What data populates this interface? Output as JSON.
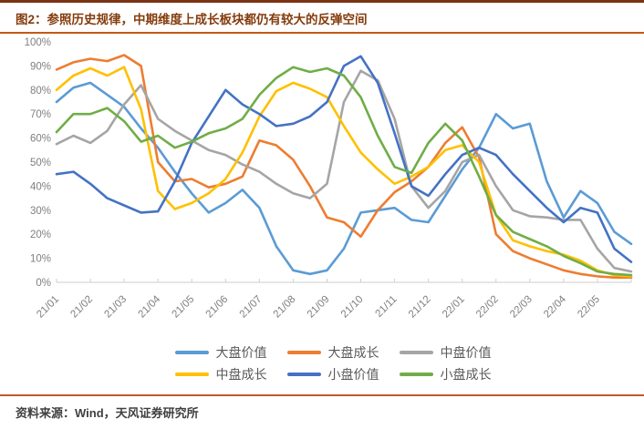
{
  "page": {
    "title": "图2：参照历史规律，中期维度上成长板块都仍有较大的反弹空间",
    "source": "资料来源：Wind，天风证券研究所"
  },
  "chart_data": {
    "type": "line",
    "title": "参照历史规律，中期维度上成长板块都仍有较大的反弹空间",
    "ylabel": "",
    "xlabel": "",
    "y_unit": "%",
    "ylim": [
      0,
      100
    ],
    "grid": false,
    "legend_position": "bottom",
    "sampling": "semi-monthly estimates (2 points per month tick)",
    "x_tick_labels": [
      "21/01",
      "21/02",
      "21/03",
      "21/04",
      "21/05",
      "21/06",
      "21/07",
      "21/08",
      "21/09",
      "21/10",
      "21/11",
      "21/12",
      "22/01",
      "22/02",
      "22/03",
      "22/04",
      "22/05"
    ],
    "y_tick_labels": [
      "0%",
      "10%",
      "20%",
      "30%",
      "40%",
      "50%",
      "60%",
      "70%",
      "80%",
      "90%",
      "100%"
    ],
    "series": [
      {
        "name": "大盘价值",
        "color": "#5B9BD5",
        "values": [
          75,
          81,
          83,
          78,
          73,
          64,
          56,
          46,
          37,
          29,
          33,
          38.5,
          31,
          15,
          5,
          3.5,
          5,
          14,
          29,
          30,
          31,
          26,
          25,
          36,
          47,
          56,
          70,
          64,
          66,
          42,
          27,
          38,
          33,
          21,
          16
        ]
      },
      {
        "name": "大盘成长",
        "color": "#ED7D31",
        "values": [
          88.5,
          91.5,
          93,
          92,
          94.5,
          90,
          50,
          42,
          43,
          39.5,
          41,
          44,
          59,
          57,
          51,
          40,
          27,
          25,
          19,
          30,
          37.5,
          42,
          48,
          58,
          64.5,
          52,
          20,
          13,
          10,
          7.5,
          5,
          3.5,
          2.5,
          2,
          2
        ]
      },
      {
        "name": "中盘价值",
        "color": "#A5A5A5",
        "values": [
          57.5,
          61,
          58,
          63,
          74,
          82,
          68,
          63,
          59,
          55,
          53,
          49,
          46,
          41,
          37,
          35,
          41,
          75,
          88,
          84,
          68,
          40,
          31,
          38,
          50,
          53,
          40,
          30,
          27.5,
          27,
          26,
          26,
          14,
          6,
          4.5
        ]
      },
      {
        "name": "中盘成长",
        "color": "#FFC000",
        "values": [
          80,
          86,
          89,
          86,
          89.5,
          72,
          38,
          30.5,
          33,
          37,
          43,
          54,
          69,
          79.5,
          83,
          80.5,
          77,
          65,
          54,
          47,
          41,
          44,
          48,
          55,
          57,
          50,
          28,
          17.5,
          15,
          13,
          11.5,
          9,
          5,
          3,
          2.5
        ]
      },
      {
        "name": "小盘价值",
        "color": "#4472C4",
        "values": [
          45,
          46,
          41,
          35,
          32,
          29,
          29.5,
          42,
          58,
          69,
          80,
          74,
          70,
          65,
          66,
          69,
          75,
          90,
          94,
          83,
          62,
          40,
          36,
          45,
          53,
          56,
          53,
          45,
          38,
          31,
          25,
          31,
          29,
          14,
          8.5
        ]
      },
      {
        "name": "小盘成长",
        "color": "#70AD47",
        "values": [
          62.5,
          70,
          70,
          72.5,
          67,
          58.5,
          61,
          56,
          58.5,
          62,
          64,
          68,
          78,
          85,
          89.5,
          87.5,
          89,
          86,
          77,
          61,
          48,
          45.5,
          58,
          66,
          59,
          44,
          28,
          21,
          18,
          15,
          11,
          8,
          4.5,
          3.5,
          3
        ]
      }
    ]
  }
}
